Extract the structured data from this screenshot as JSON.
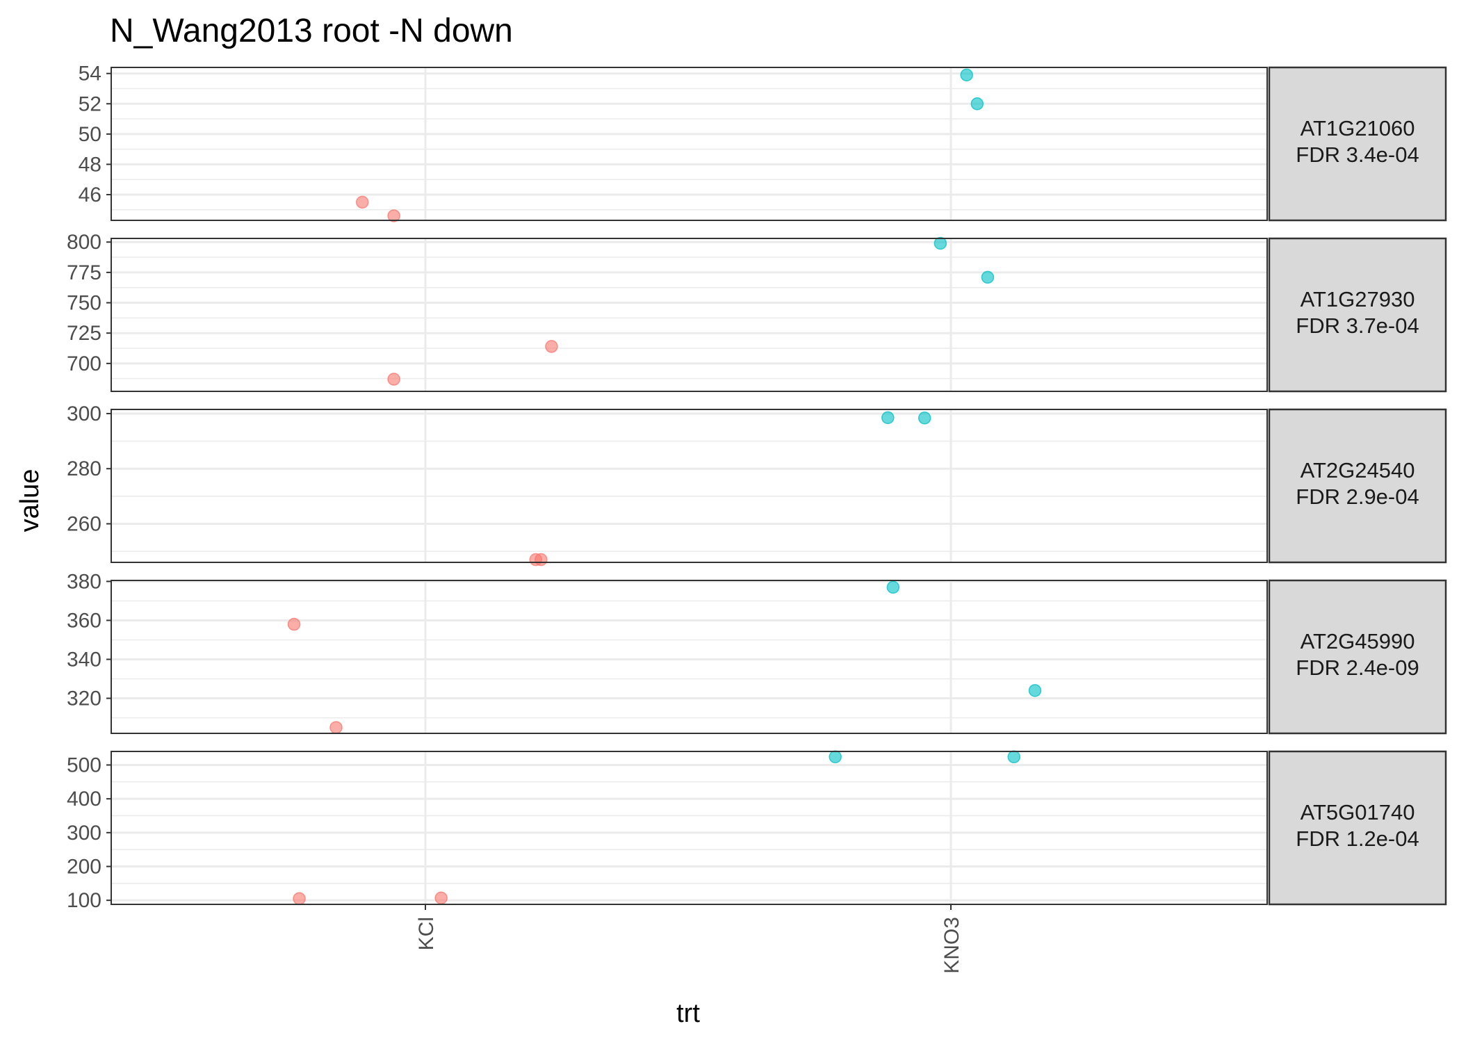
{
  "chart_data": {
    "type": "scatter",
    "title": "N_Wang2013 root -N down",
    "xlabel": "trt",
    "ylabel": "value",
    "categories": [
      "KCl",
      "KNO3"
    ],
    "colors": {
      "KCl": "#F8766D",
      "KNO3": "#00BFC4"
    },
    "facets": [
      {
        "label": "AT1G21060\nFDR 3.4e-04",
        "ylim": [
          44.3,
          54.4
        ],
        "yticks": [
          46,
          48,
          50,
          52,
          54
        ],
        "points": [
          {
            "trt": "KCl",
            "jitter": -0.12,
            "value": 45.5
          },
          {
            "trt": "KCl",
            "jitter": -0.06,
            "value": 44.6
          },
          {
            "trt": "KNO3",
            "jitter": 0.03,
            "value": 53.9
          },
          {
            "trt": "KNO3",
            "jitter": 0.05,
            "value": 52.0
          }
        ]
      },
      {
        "label": "AT1G27930\nFDR 3.7e-04",
        "ylim": [
          677,
          803
        ],
        "yticks": [
          700,
          725,
          750,
          775,
          800
        ],
        "points": [
          {
            "trt": "KCl",
            "jitter": -0.06,
            "value": 687
          },
          {
            "trt": "KCl",
            "jitter": 0.24,
            "value": 714
          },
          {
            "trt": "KNO3",
            "jitter": -0.02,
            "value": 799
          },
          {
            "trt": "KNO3",
            "jitter": 0.07,
            "value": 771
          }
        ]
      },
      {
        "label": "AT2G24540\nFDR 2.9e-04",
        "ylim": [
          246,
          301.5
        ],
        "yticks": [
          260,
          280,
          300
        ],
        "points": [
          {
            "trt": "KCl",
            "jitter": 0.21,
            "value": 247
          },
          {
            "trt": "KCl",
            "jitter": 0.22,
            "value": 247
          },
          {
            "trt": "KNO3",
            "jitter": -0.12,
            "value": 298.5
          },
          {
            "trt": "KNO3",
            "jitter": -0.05,
            "value": 298.4
          }
        ]
      },
      {
        "label": "AT2G45990\nFDR 2.4e-09",
        "ylim": [
          302,
          380.5
        ],
        "yticks": [
          320,
          340,
          360,
          380
        ],
        "points": [
          {
            "trt": "KCl",
            "jitter": -0.25,
            "value": 358
          },
          {
            "trt": "KCl",
            "jitter": -0.17,
            "value": 305
          },
          {
            "trt": "KNO3",
            "jitter": -0.11,
            "value": 377
          },
          {
            "trt": "KNO3",
            "jitter": 0.16,
            "value": 324
          }
        ]
      },
      {
        "label": "AT5G01740\nFDR 1.2e-04",
        "ylim": [
          88,
          540
        ],
        "yticks": [
          100,
          200,
          300,
          400,
          500
        ],
        "points": [
          {
            "trt": "KCl",
            "jitter": -0.24,
            "value": 105
          },
          {
            "trt": "KCl",
            "jitter": 0.03,
            "value": 107
          },
          {
            "trt": "KNO3",
            "jitter": -0.22,
            "value": 524
          },
          {
            "trt": "KNO3",
            "jitter": 0.12,
            "value": 524
          }
        ]
      }
    ]
  }
}
